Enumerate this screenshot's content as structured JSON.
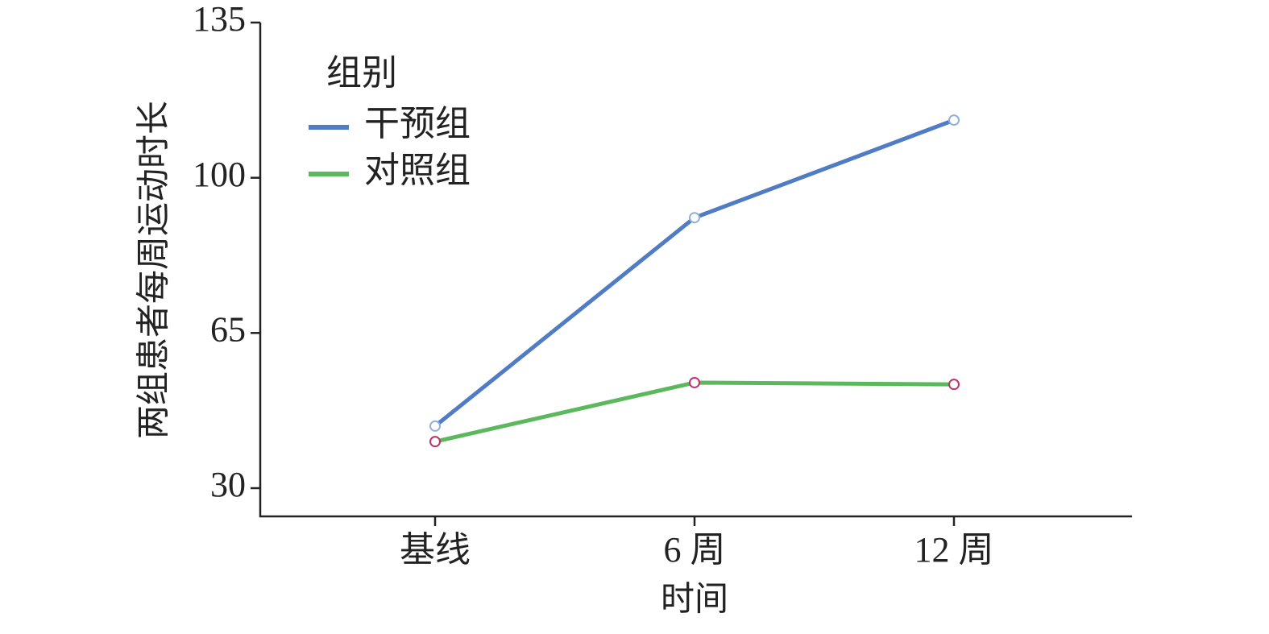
{
  "chart_data": {
    "type": "line",
    "categories": [
      "基线",
      "6 周",
      "12 周"
    ],
    "series": [
      {
        "name": "干预组",
        "color": "#4f7cc4",
        "marker_color": "#8fb0dc",
        "values": [
          44,
          91,
          113
        ]
      },
      {
        "name": "对照组",
        "color": "#5cb85c",
        "marker_color": "#c0306a",
        "values": [
          40.5,
          53.8,
          53.4
        ]
      }
    ],
    "ylim": [
      24,
      135
    ],
    "yticks": [
      30,
      65,
      100,
      135
    ],
    "ylabel": "两组患者每周运动时长",
    "xlabel": "时间",
    "legend_title": "组别",
    "legend": "upper left",
    "grid": false
  }
}
